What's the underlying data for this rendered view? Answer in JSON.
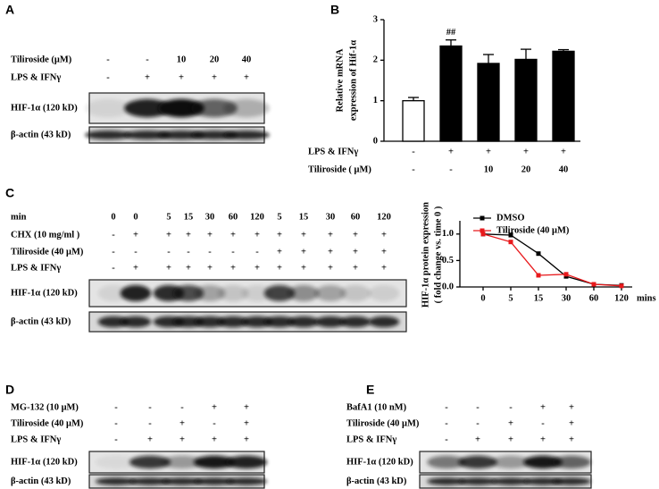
{
  "panel_letters": [
    "A",
    "B",
    "C",
    "D",
    "E"
  ],
  "blot_panels": [
    {
      "rows": [
        {
          "label": "Tiliroside (μM)",
          "cells": [
            "-",
            "-",
            "10",
            "20",
            "40"
          ]
        },
        {
          "label": "LPS & IFNγ",
          "cells": [
            "-",
            "+",
            "+",
            "+",
            "+"
          ]
        }
      ],
      "blots": [
        "HIF-1α (120 kD)",
        "β-actin (43 kD)"
      ]
    },
    {
      "rows": [
        {
          "label": "min",
          "cells": [
            "0",
            "0",
            "5",
            "15",
            "30",
            "60",
            "120",
            "5",
            "15",
            "30",
            "60",
            "120"
          ]
        },
        {
          "label": "CHX (10 mg/ml )",
          "cells": [
            "-",
            "+",
            "+",
            "+",
            "+",
            "+",
            "+",
            "+",
            "+",
            "+",
            "+",
            "+"
          ]
        },
        {
          "label": "Tiliroside (40 μM)",
          "cells": [
            "-",
            "-",
            "-",
            "-",
            "-",
            "-",
            "-",
            "+",
            "+",
            "+",
            "+",
            "+"
          ]
        },
        {
          "label": "LPS & IFNγ",
          "cells": [
            "-",
            "+",
            "+",
            "+",
            "+",
            "+",
            "+",
            "+",
            "+",
            "+",
            "+",
            "+"
          ]
        }
      ],
      "blots": [
        "HIF-1α (120 kD)",
        "β-actin (43 kD)"
      ]
    },
    {
      "rows": [
        {
          "label": "MG-132 (10 μM)",
          "cells": [
            "-",
            "-",
            "-",
            "+",
            "+"
          ]
        },
        {
          "label": "Tiliroside (40 μM)",
          "cells": [
            "-",
            "-",
            "+",
            "-",
            "+"
          ]
        },
        {
          "label": "LPS & IFNγ",
          "cells": [
            "-",
            "+",
            "+",
            "+",
            "+"
          ]
        }
      ],
      "blots": [
        "HIF-1α (120 kD)",
        "β-actin (43 kD)"
      ]
    },
    {
      "rows": [
        {
          "label": "BafA1 (10 nM)",
          "cells": [
            "-",
            "-",
            "-",
            "+",
            "+"
          ]
        },
        {
          "label": "Tiliroside (40 μM)",
          "cells": [
            "-",
            "-",
            "+",
            "-",
            "+"
          ]
        },
        {
          "label": "LPS & IFNγ",
          "cells": [
            "-",
            "+",
            "+",
            "+",
            "+"
          ]
        }
      ],
      "blots": [
        "HIF-1α (120 kD)",
        "β-actin (43 kD)"
      ]
    }
  ],
  "chart_data": [
    {
      "type": "bar",
      "ylabel": [
        "Relative mRNA",
        "expression of Hif-1α"
      ],
      "values": [
        1.0,
        2.35,
        1.92,
        2.02,
        2.22
      ],
      "errors": [
        0.08,
        0.15,
        0.22,
        0.25,
        0.04
      ],
      "colors": [
        "#ffffff",
        "#000000",
        "#000000",
        "#000000",
        "#000000"
      ],
      "annotations": [
        null,
        "##",
        null,
        null,
        null
      ],
      "ylim": [
        0,
        3
      ],
      "yticks": [
        0,
        1,
        2,
        3
      ],
      "conditions": [
        {
          "label": "LPS & IFNγ",
          "cells": [
            "-",
            "+",
            "+",
            "+",
            "+"
          ]
        },
        {
          "label": "Tiliroside ( μM)",
          "cells": [
            "-",
            "-",
            "10",
            "20",
            "40"
          ]
        }
      ]
    },
    {
      "type": "line",
      "ylabel": [
        "HIF-1α protein expression",
        "( fold change vs. time 0 )"
      ],
      "xlabel": "mins",
      "categories": [
        "0",
        "5",
        "15",
        "30",
        "60",
        "120"
      ],
      "series": [
        {
          "name": "DMSO",
          "color": "#000000",
          "values": [
            1.0,
            0.98,
            0.63,
            0.2,
            0.05,
            0.03
          ]
        },
        {
          "name": "Tiliroside (40  μM)",
          "color": "#e8191c",
          "values": [
            1.0,
            0.85,
            0.22,
            0.24,
            0.05,
            0.02
          ]
        }
      ],
      "ylim": [
        0,
        1.25
      ],
      "yticks": [
        {
          "value": 0,
          "label": "0.0"
        },
        {
          "value": 0.5,
          "label": "0.5"
        },
        {
          "value": 1,
          "label": "1.0"
        }
      ],
      "legend": "top-right"
    }
  ]
}
